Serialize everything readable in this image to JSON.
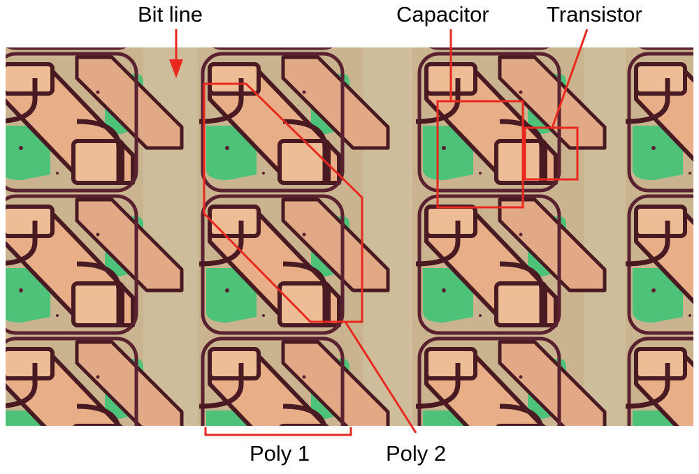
{
  "figure": {
    "description_labels": {
      "bit_line": "Bit line",
      "capacitor": "Capacitor",
      "transistor": "Transistor",
      "poly_1": "Poly 1",
      "poly_2": "Poly 2"
    },
    "annotation_color": "#e8281e",
    "colors": {
      "substrate": "#c9b48f",
      "poly1_fill": "#e9b088",
      "poly_outline": "#4a1a22",
      "capacitor_oxide": "#4fc27a",
      "background": "#ffffff"
    }
  }
}
